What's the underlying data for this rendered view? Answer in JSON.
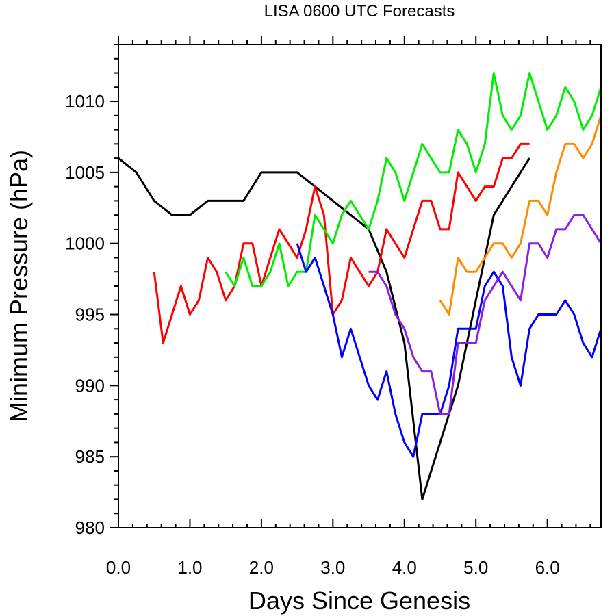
{
  "chart_data": {
    "type": "line",
    "title": "LISA 0600 UTC Forecasts",
    "xlabel": "Days Since Genesis",
    "ylabel": "Minimum Pressure (hPa)",
    "xlim": [
      0,
      6.75
    ],
    "ylim": [
      980,
      1014
    ],
    "x_ticks": [
      0,
      1,
      2,
      3,
      4,
      5,
      6
    ],
    "x_tick_labels": [
      "0.0",
      "1.0",
      "2.0",
      "3.0",
      "4.0",
      "5.0",
      "6.0"
    ],
    "y_ticks": [
      980,
      985,
      990,
      995,
      1000,
      1005,
      1010
    ],
    "y_tick_labels": [
      "980",
      "985",
      "990",
      "995",
      "1000",
      "1005",
      "1010"
    ],
    "grid": false,
    "legend": "none",
    "series": [
      {
        "color": "#000000",
        "x": [
          0,
          0.25,
          0.5,
          0.75,
          1.0,
          1.25,
          1.5,
          1.75,
          2.0,
          2.25,
          2.5,
          2.75,
          3.0,
          3.25,
          3.5,
          3.75,
          4.0,
          4.25,
          4.5,
          4.75,
          5.0,
          5.25,
          5.5,
          5.75
        ],
        "y": [
          1006,
          1005,
          1003,
          1002,
          1002,
          1003,
          1003,
          1003,
          1005,
          1005,
          1005,
          1004,
          1003,
          1002,
          1001,
          998,
          993,
          982,
          986,
          990,
          996,
          1002,
          1004,
          1006
        ]
      },
      {
        "color": "#ff0000",
        "x": [
          0.5,
          0.625,
          0.75,
          0.875,
          1.0,
          1.125,
          1.25,
          1.375,
          1.5,
          1.625,
          1.75,
          1.875,
          2.0,
          2.125,
          2.25,
          2.375,
          2.5,
          2.625,
          2.75,
          2.875,
          3.0,
          3.125,
          3.25,
          3.375,
          3.5,
          3.625,
          3.75,
          3.875,
          4.0,
          4.125,
          4.25,
          4.375,
          4.5,
          4.625,
          4.75,
          4.875,
          5.0,
          5.125,
          5.25,
          5.375,
          5.5,
          5.625,
          5.75
        ],
        "y": [
          998,
          993,
          995,
          997,
          995,
          996,
          999,
          998,
          996,
          997,
          1000,
          1000,
          997,
          999,
          1001,
          1000,
          999,
          1001,
          1004,
          1002,
          995,
          996,
          999,
          998,
          997,
          998,
          1001,
          1000,
          999,
          1001,
          1003,
          1003,
          1001,
          1001,
          1005,
          1004,
          1003,
          1004,
          1004,
          1006,
          1006,
          1007,
          1007
        ]
      },
      {
        "color": "#00ee00",
        "x": [
          1.5,
          1.625,
          1.75,
          1.875,
          2.0,
          2.125,
          2.25,
          2.375,
          2.5,
          2.625,
          2.75,
          2.875,
          3.0,
          3.125,
          3.25,
          3.375,
          3.5,
          3.625,
          3.75,
          3.875,
          4.0,
          4.125,
          4.25,
          4.375,
          4.5,
          4.625,
          4.75,
          4.875,
          5.0,
          5.125,
          5.25,
          5.375,
          5.5,
          5.625,
          5.75,
          5.875,
          6.0,
          6.125,
          6.25,
          6.375,
          6.5,
          6.625,
          6.75
        ],
        "y": [
          998,
          997,
          999,
          997,
          997,
          998,
          1000,
          997,
          998,
          998,
          1002,
          1001,
          1000,
          1002,
          1003,
          1002,
          1001,
          1003,
          1006,
          1005,
          1003,
          1005,
          1007,
          1006,
          1005,
          1005,
          1008,
          1007,
          1005,
          1007,
          1012,
          1009,
          1008,
          1009,
          1012,
          1010,
          1008,
          1009,
          1011,
          1010,
          1008,
          1009,
          1011
        ]
      },
      {
        "color": "#0000ff",
        "x": [
          2.5,
          2.625,
          2.75,
          2.875,
          3.0,
          3.125,
          3.25,
          3.375,
          3.5,
          3.625,
          3.75,
          3.875,
          4.0,
          4.125,
          4.25,
          4.375,
          4.5,
          4.625,
          4.75,
          4.875,
          5.0,
          5.125,
          5.25,
          5.375,
          5.5,
          5.625,
          5.75,
          5.875,
          6.0,
          6.125,
          6.25,
          6.375,
          6.5,
          6.625,
          6.75
        ],
        "y": [
          1000,
          998,
          999,
          997,
          995,
          992,
          994,
          992,
          990,
          989,
          991,
          988,
          986,
          985,
          988,
          988,
          988,
          990,
          994,
          994,
          994,
          997,
          998,
          997,
          992,
          990,
          994,
          995,
          995,
          995,
          996,
          995,
          993,
          992,
          994
        ]
      },
      {
        "color": "#8b1ee8",
        "x": [
          3.5,
          3.625,
          3.75,
          3.875,
          4.0,
          4.125,
          4.25,
          4.375,
          4.5,
          4.625,
          4.75,
          4.875,
          5.0,
          5.125,
          5.25,
          5.375,
          5.5,
          5.625,
          5.75,
          5.875,
          6.0,
          6.125,
          6.25,
          6.375,
          6.5,
          6.625,
          6.75
        ],
        "y": [
          998,
          998,
          997,
          995,
          994,
          992,
          991,
          991,
          988,
          988,
          993,
          993,
          993,
          996,
          997,
          998,
          997,
          996,
          1000,
          1000,
          999,
          1001,
          1001,
          1002,
          1002,
          1001,
          1000
        ]
      },
      {
        "color": "#ff8c00",
        "x": [
          4.5,
          4.625,
          4.75,
          4.875,
          5.0,
          5.125,
          5.25,
          5.375,
          5.5,
          5.625,
          5.75,
          5.875,
          6.0,
          6.125,
          6.25,
          6.375,
          6.5,
          6.625,
          6.75
        ],
        "y": [
          996,
          995,
          999,
          998,
          998,
          999,
          1000,
          1000,
          999,
          1000,
          1003,
          1003,
          1002,
          1005,
          1007,
          1007,
          1006,
          1007,
          1009
        ]
      }
    ]
  }
}
